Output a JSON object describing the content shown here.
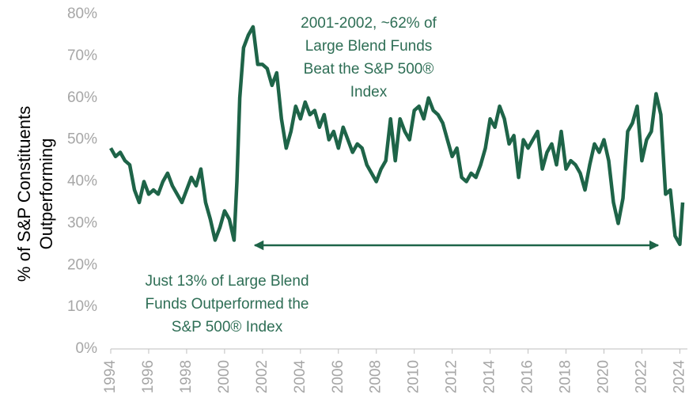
{
  "chart_data": {
    "type": "line",
    "ylabel": [
      "% of S&P Constituents",
      "Outperforming"
    ],
    "annotations": [
      {
        "lines": [
          "2001-2002, ~62% of",
          "Large Blend Funds",
          "Beat the S&P 500®",
          "Index"
        ]
      },
      {
        "lines": [
          "Just 13% of Large Blend",
          "Funds Outperformed the",
          "S&P 500® Index"
        ]
      }
    ],
    "color": "#1e6448",
    "x": [
      1994,
      1994.25,
      1994.5,
      1994.75,
      1995,
      1995.25,
      1995.5,
      1995.75,
      1996,
      1996.25,
      1996.5,
      1996.75,
      1997,
      1997.25,
      1997.5,
      1997.75,
      1998,
      1998.25,
      1998.5,
      1998.75,
      1999,
      1999.25,
      1999.5,
      1999.75,
      2000,
      2000.25,
      2000.5,
      2000.65,
      2000.8,
      2001,
      2001.25,
      2001.5,
      2001.75,
      2002,
      2002.25,
      2002.5,
      2002.75,
      2003,
      2003.25,
      2003.5,
      2003.75,
      2004,
      2004.25,
      2004.5,
      2004.75,
      2005,
      2005.25,
      2005.5,
      2005.75,
      2006,
      2006.25,
      2006.5,
      2006.75,
      2007,
      2007.25,
      2007.5,
      2007.75,
      2008,
      2008.25,
      2008.5,
      2008.75,
      2009,
      2009.25,
      2009.5,
      2009.75,
      2010,
      2010.25,
      2010.5,
      2010.75,
      2011,
      2011.25,
      2011.5,
      2011.75,
      2012,
      2012.25,
      2012.5,
      2012.75,
      2013,
      2013.25,
      2013.5,
      2013.75,
      2014,
      2014.25,
      2014.5,
      2014.75,
      2015,
      2015.25,
      2015.5,
      2015.75,
      2016,
      2016.25,
      2016.5,
      2016.75,
      2017,
      2017.25,
      2017.5,
      2017.75,
      2018,
      2018.25,
      2018.5,
      2018.75,
      2019,
      2019.25,
      2019.5,
      2019.75,
      2020,
      2020.25,
      2020.5,
      2020.75,
      2021,
      2021.25,
      2021.5,
      2021.75,
      2022,
      2022.25,
      2022.5,
      2022.75,
      2023,
      2023.25,
      2023.5,
      2023.75,
      2024,
      2024.15
    ],
    "values": [
      48,
      46,
      47,
      45,
      44,
      38,
      35,
      40,
      37,
      38,
      37,
      40,
      42,
      39,
      37,
      35,
      38,
      41,
      39,
      43,
      35,
      31,
      26,
      29,
      33,
      31,
      26,
      40,
      60,
      72,
      75,
      77,
      68,
      68,
      67,
      63,
      66,
      55,
      48,
      52,
      58,
      55,
      59,
      56,
      57,
      53,
      56,
      50,
      52,
      48,
      53,
      50,
      47,
      49,
      48,
      44,
      42,
      40,
      43,
      45,
      55,
      45,
      55,
      52,
      50,
      57,
      58,
      55,
      60,
      57,
      56,
      54,
      50,
      46,
      48,
      41,
      40,
      42,
      41,
      44,
      48,
      55,
      53,
      58,
      55,
      49,
      51,
      41,
      50,
      48,
      50,
      52,
      43,
      47,
      49,
      44,
      52,
      43,
      45,
      44,
      42,
      38,
      44,
      49,
      47,
      50,
      45,
      35,
      30,
      36,
      52,
      54,
      58,
      45,
      50,
      52,
      61,
      56,
      37,
      38,
      27,
      25,
      35
    ],
    "xlim": [
      1994,
      2024.4
    ],
    "xticks": [
      1994,
      1996,
      1998,
      2000,
      2002,
      2004,
      2006,
      2008,
      2010,
      2012,
      2014,
      2016,
      2018,
      2020,
      2022,
      2024
    ],
    "ylim": [
      0,
      80
    ],
    "yticks": [
      {
        "value": 0,
        "label": "0%"
      },
      {
        "value": 10,
        "label": "10%"
      },
      {
        "value": 20,
        "label": "20%"
      },
      {
        "value": 30,
        "label": "30%"
      },
      {
        "value": 40,
        "label": "40%"
      },
      {
        "value": 50,
        "label": "50%"
      },
      {
        "value": 60,
        "label": "60%"
      },
      {
        "value": 70,
        "label": "70%"
      },
      {
        "value": 80,
        "label": "80%"
      }
    ]
  }
}
